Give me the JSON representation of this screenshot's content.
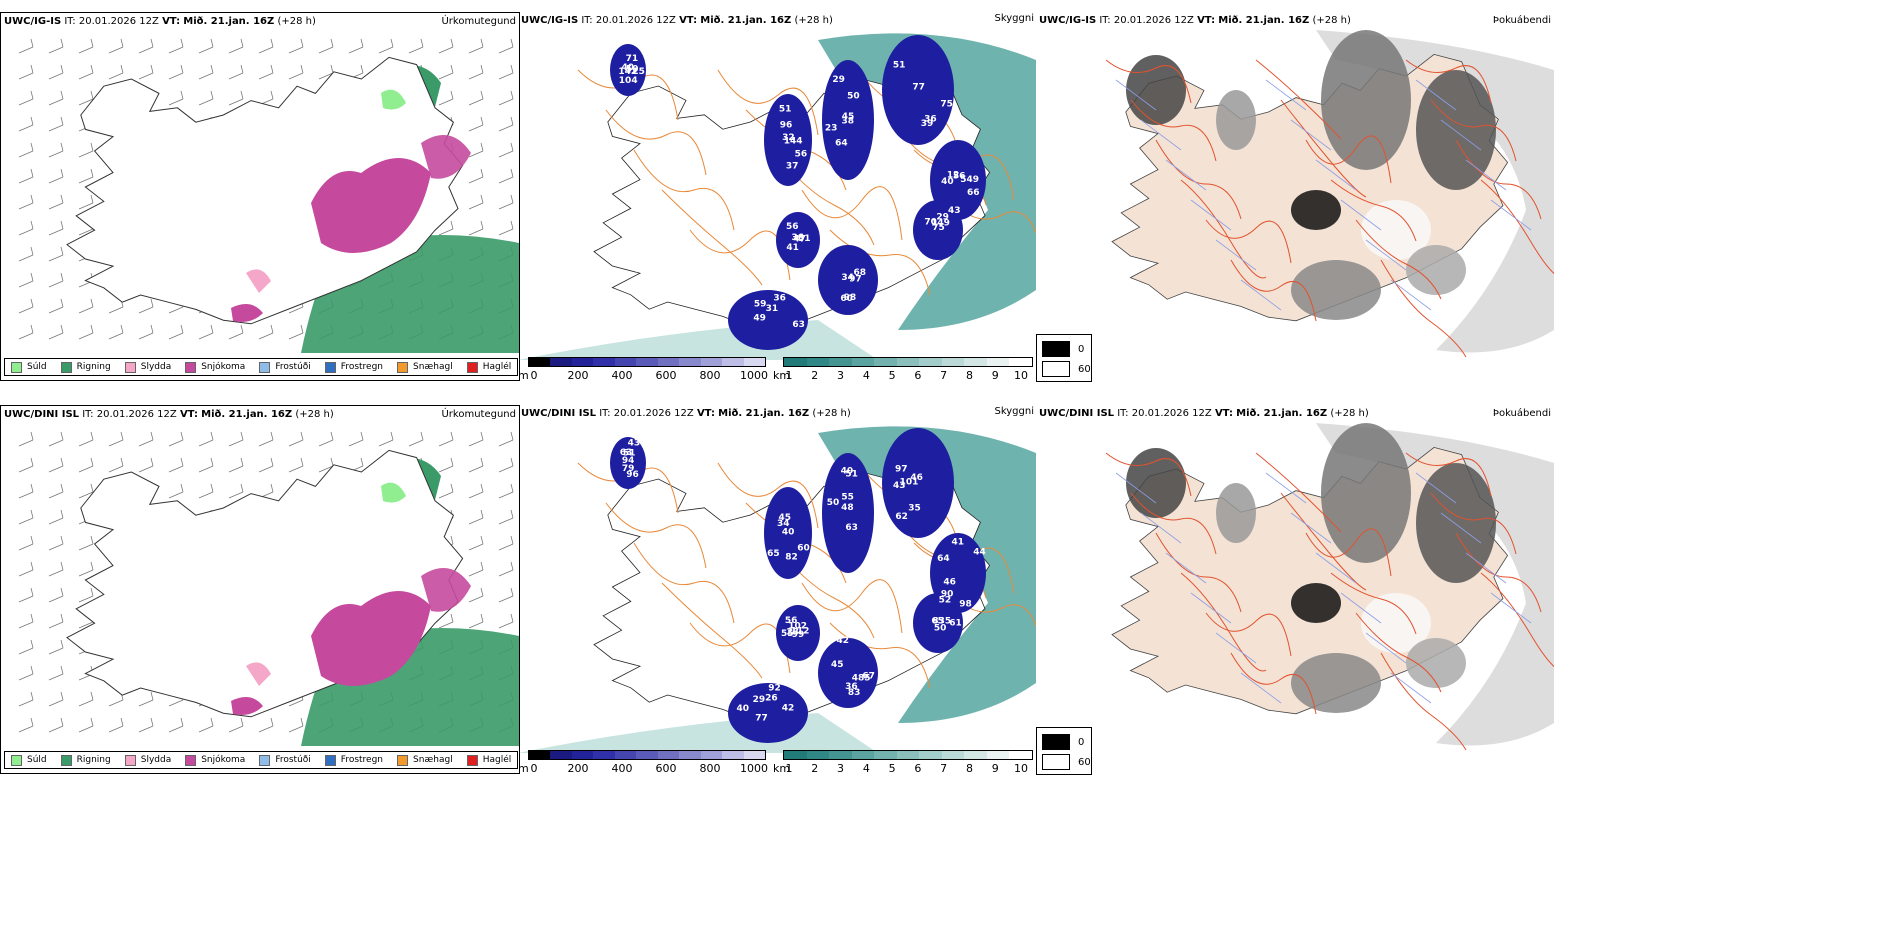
{
  "rows": [
    {
      "precip_title": {
        "model": "UWC/IG-IS",
        "it_label": "IT:",
        "it_value": "20.01.2026 12Z",
        "vt_label": "VT:",
        "vt_value": "Mið. 21.jan. 16Z",
        "lead": "(+28 h)"
      },
      "precip_right": "Úrkomutegund",
      "cloud_title": {
        "model": "UWC/IG-IS",
        "it_label": "IT:",
        "it_value": "20.01.2026 12Z",
        "vt_label": "VT:",
        "vt_value": "Mið. 21.jan. 16Z",
        "lead": "(+28 h)"
      },
      "cloud_right": "Skyggni",
      "fog_title": {
        "model": "UWC/IG-IS",
        "it_label": "IT:",
        "it_value": "20.01.2026 12Z",
        "vt_label": "VT:",
        "vt_value": "Mið. 21.jan. 16Z",
        "lead": "(+28 h)"
      },
      "fog_right": "Þokuábendi",
      "cloud_labels": [
        "71",
        "56",
        "64",
        "75",
        "56",
        "47",
        "49",
        "34",
        "75",
        "50",
        "51",
        "50",
        "77",
        "12",
        "56",
        "59",
        "68",
        "70",
        "142",
        "144",
        "29",
        "36",
        "66",
        "36",
        "36",
        "98",
        "149",
        "25",
        "32",
        "45",
        "51",
        "549",
        "51",
        "63",
        "60",
        "29",
        "104",
        "96",
        "38",
        "39",
        "40",
        "41",
        "31",
        "97",
        "43",
        "40",
        "37",
        "23"
      ]
    },
    {
      "precip_title": {
        "model": "UWC/DINI ISL",
        "it_label": "IT:",
        "it_value": "20.01.2026 12Z",
        "vt_label": "VT:",
        "vt_value": "Mið. 21.jan. 16Z",
        "lead": "(+28 h)"
      },
      "precip_right": "Úrkomutegund",
      "cloud_title": {
        "model": "UWC/DINI ISL",
        "it_label": "IT:",
        "it_value": "20.01.2026 12Z",
        "vt_label": "VT:",
        "vt_value": "Mið. 21.jan. 16Z",
        "lead": "(+28 h)"
      },
      "cloud_right": "Skyggni",
      "fog_title": {
        "model": "UWC/DINI ISL",
        "it_label": "IT:",
        "it_value": "20.01.2026 12Z",
        "vt_label": "VT:",
        "vt_value": "Mið. 21.jan. 16Z",
        "lead": "(+28 h)"
      },
      "fog_right": "Þokuábendi",
      "cloud_labels": [
        "94",
        "60",
        "50",
        "43",
        "64",
        "55",
        "92",
        "83",
        "65",
        "43",
        "34",
        "63",
        "62",
        "46",
        "99",
        "29",
        "67",
        "52",
        "79",
        "82",
        "55",
        "97",
        "90",
        "102",
        "26",
        "36",
        "61",
        "96",
        "45",
        "51",
        "101",
        "98",
        "56",
        "40",
        "485",
        "50",
        "51",
        "40",
        "48",
        "46",
        "41",
        "112",
        "77",
        "42",
        "835",
        "63",
        "65",
        "40",
        "35",
        "44",
        "23",
        "42",
        "45"
      ]
    }
  ],
  "precip_legend": [
    {
      "label": "Súld",
      "color": "#90ee90"
    },
    {
      "label": "Rigning",
      "color": "#3a9a68"
    },
    {
      "label": "Slydda",
      "color": "#f4a7c8"
    },
    {
      "label": "Snjókoma",
      "color": "#c54a9e"
    },
    {
      "label": "Frostúði",
      "color": "#8fbde8"
    },
    {
      "label": "Frostregn",
      "color": "#2f6ec1"
    },
    {
      "label": "Snæhagl",
      "color": "#f29a2e"
    },
    {
      "label": "Haglél",
      "color": "#e02020"
    }
  ],
  "cloud_base_bar": {
    "unit": "m",
    "ticks": [
      "0",
      "200",
      "400",
      "600",
      "800",
      "1000"
    ],
    "colors": [
      "#000000",
      "#1a1a80",
      "#222299",
      "#3030a8",
      "#4545b0",
      "#5a5ab8",
      "#7070c0",
      "#8888cc",
      "#a0a0d8",
      "#bdbde6",
      "#d8d8f0"
    ]
  },
  "visibility_bar": {
    "unit": "km",
    "ticks": [
      "1",
      "2",
      "3",
      "4",
      "5",
      "6",
      "7",
      "8",
      "9",
      "10"
    ],
    "colors": [
      "#217b78",
      "#2f8885",
      "#449592",
      "#5aa3a0",
      "#72b1ae",
      "#8abfbc",
      "#a2cdca",
      "#bad9d7",
      "#d2e6e4",
      "#eaf3f2",
      "#ffffff"
    ]
  },
  "fog_key": {
    "top_value": "0",
    "bottom_value": "60",
    "top_color": "#000000",
    "bottom_color": "#ffffff"
  }
}
